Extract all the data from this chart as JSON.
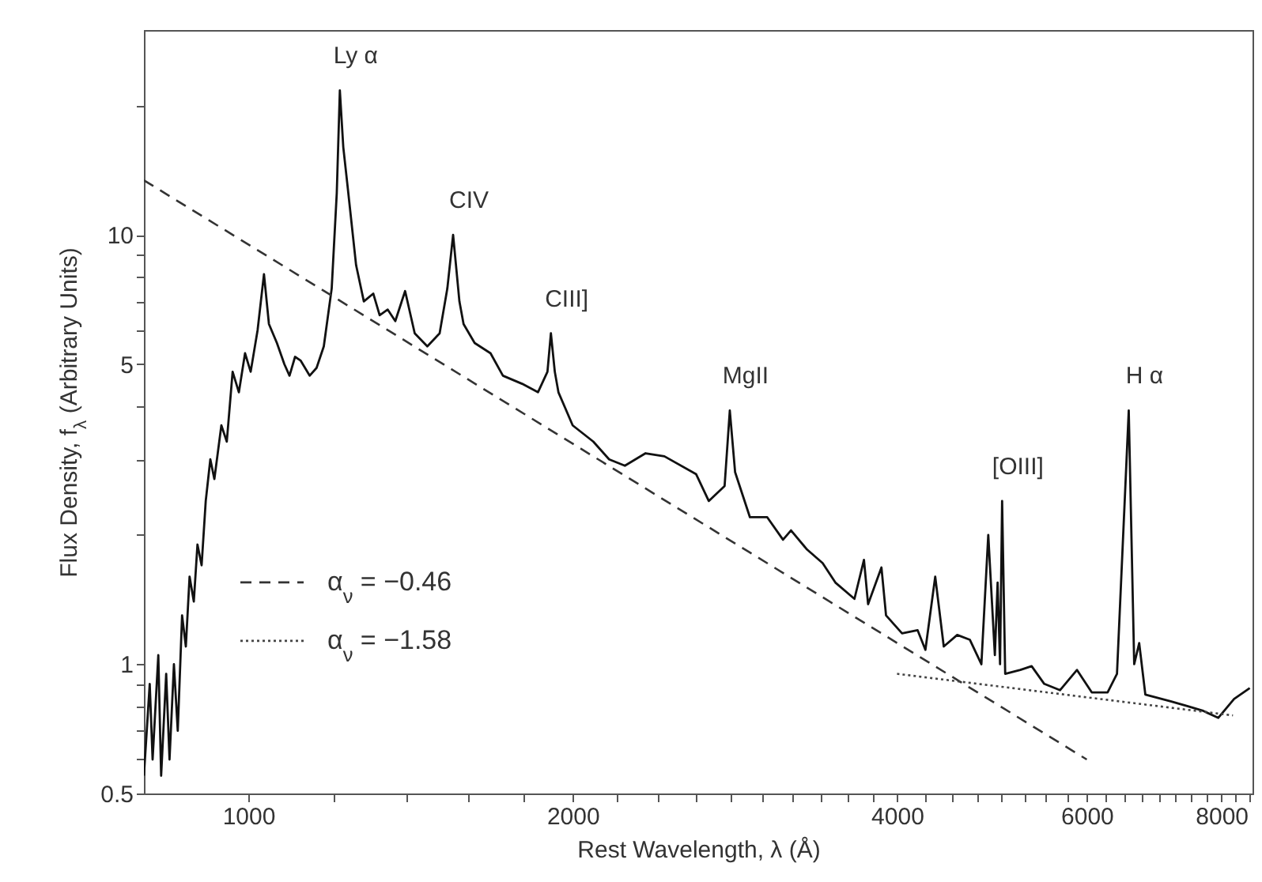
{
  "chart_data": {
    "type": "line",
    "log": "xy",
    "xlabel": "Rest Wavelength, λ (Å)",
    "ylabel": "Flux Density, f$_{λ}$ (Arbitrary Units)",
    "xlim": [
      800,
      8550
    ],
    "ylim": [
      0.5,
      30
    ],
    "xticks": [
      1000,
      {
        "value": 1200,
        "label": null
      },
      {
        "value": 1400,
        "label": null
      },
      {
        "value": 1600,
        "label": null
      },
      {
        "value": 1800,
        "label": null
      },
      2000,
      {
        "value": 2200,
        "label": null
      },
      {
        "value": 2400,
        "label": null
      },
      {
        "value": 2600,
        "label": null
      },
      {
        "value": 2800,
        "label": null
      },
      {
        "value": 3000,
        "label": null
      },
      {
        "value": 3200,
        "label": null
      },
      {
        "value": 3400,
        "label": null
      },
      {
        "value": 3600,
        "label": null
      },
      {
        "value": 3800,
        "label": null
      },
      4000,
      {
        "value": 4250,
        "label": null
      },
      {
        "value": 4500,
        "label": null
      },
      {
        "value": 4750,
        "label": null
      },
      {
        "value": 5000,
        "label": null
      },
      {
        "value": 5250,
        "label": null
      },
      {
        "value": 5500,
        "label": null
      },
      {
        "value": 5750,
        "label": null
      },
      6000,
      {
        "value": 6250,
        "label": null
      },
      {
        "value": 6500,
        "label": null
      },
      {
        "value": 6750,
        "label": null
      },
      {
        "value": 7000,
        "label": null
      },
      {
        "value": 7250,
        "label": null
      },
      {
        "value": 7500,
        "label": null
      },
      {
        "value": 7750,
        "label": null
      },
      8000,
      {
        "value": 8250,
        "label": null
      },
      {
        "value": 8500,
        "label": null
      }
    ],
    "yticks": [
      0.5,
      {
        "value": 0.6,
        "label": null
      },
      {
        "value": 0.7,
        "label": null
      },
      {
        "value": 0.8,
        "label": null
      },
      {
        "value": 0.9,
        "label": null
      },
      1,
      {
        "value": 2,
        "label": null
      },
      {
        "value": 3,
        "label": null
      },
      {
        "value": 4,
        "label": null
      },
      5,
      {
        "value": 6,
        "label": null
      },
      {
        "value": 7,
        "label": null
      },
      {
        "value": 8,
        "label": null
      },
      {
        "value": 9,
        "label": null
      },
      10,
      {
        "value": 20,
        "label": null
      }
    ],
    "legend": "bottom left",
    "series": [
      {
        "color": "#111111",
        "x": [
          800,
          810,
          815,
          825,
          830,
          839,
          845,
          853,
          860,
          868,
          875,
          882,
          890,
          897,
          905,
          913,
          922,
          930,
          944,
          955,
          967,
          980,
          993,
          1005,
          1020,
          1034,
          1045,
          1063,
          1080,
          1092,
          1105,
          1118,
          1140,
          1157,
          1175,
          1195,
          1208,
          1216,
          1225,
          1237,
          1259,
          1280,
          1306,
          1324,
          1347,
          1369,
          1398,
          1427,
          1466,
          1505,
          1530,
          1549,
          1570,
          1584,
          1622,
          1678,
          1723,
          1795,
          1857,
          1895,
          1909,
          1925,
          1940,
          2000,
          2090,
          2162,
          2236,
          2337,
          2433,
          2604,
          2675,
          2767,
          2798,
          2830,
          2921,
          3031,
          3135,
          3189,
          3300,
          3412,
          3506,
          3652,
          3727,
          3760,
          3869,
          3907,
          4043,
          4180,
          4250,
          4340,
          4420,
          4549,
          4674,
          4790,
          4861,
          4930,
          4959,
          4985,
          5007,
          5040,
          5206,
          5333,
          5479,
          5666,
          5876,
          6064,
          6273,
          6400,
          6563,
          6640,
          6711,
          6800,
          7178,
          7426,
          7683,
          7946,
          8220,
          8500
        ],
        "values": [
          0.55,
          0.9,
          0.6,
          1.05,
          0.55,
          0.95,
          0.6,
          1.0,
          0.7,
          1.3,
          1.1,
          1.6,
          1.4,
          1.9,
          1.7,
          2.4,
          3.0,
          2.7,
          3.6,
          3.3,
          4.8,
          4.3,
          5.3,
          4.8,
          6.0,
          8.1,
          6.2,
          5.6,
          5.0,
          4.7,
          5.2,
          5.1,
          4.7,
          4.9,
          5.5,
          7.5,
          12.5,
          21.7,
          16,
          12.8,
          8.5,
          7.0,
          7.3,
          6.5,
          6.7,
          6.3,
          7.4,
          5.9,
          5.5,
          5.9,
          7.5,
          10.0,
          7.0,
          6.2,
          5.6,
          5.3,
          4.7,
          4.5,
          4.3,
          4.8,
          5.9,
          4.8,
          4.3,
          3.6,
          3.3,
          3.0,
          2.9,
          3.1,
          3.05,
          2.77,
          2.4,
          2.6,
          3.9,
          2.8,
          2.2,
          2.2,
          1.95,
          2.05,
          1.85,
          1.72,
          1.55,
          1.42,
          1.75,
          1.38,
          1.68,
          1.3,
          1.18,
          1.2,
          1.08,
          1.6,
          1.1,
          1.17,
          1.14,
          1.0,
          2.0,
          1.05,
          1.55,
          1.0,
          2.4,
          0.95,
          0.97,
          0.99,
          0.9,
          0.87,
          0.97,
          0.86,
          0.86,
          0.95,
          3.9,
          1.0,
          1.12,
          0.85,
          0.82,
          0.8,
          0.78,
          0.75,
          0.83,
          0.88
        ]
      },
      {
        "name": "α$_{ν}$ = −0.46",
        "color": "#333333",
        "line_style": "dashed",
        "x": [
          800,
          6000
        ],
        "values": [
          13.4,
          0.6
        ]
      },
      {
        "name": "α$_{ν}$ = −1.58",
        "color": "#444444",
        "line_style": "dotted",
        "x": [
          4000,
          8200
        ],
        "values": [
          0.95,
          0.76
        ]
      }
    ],
    "annotations": [
      {
        "text": "Ly α",
        "x": 1216,
        "y": 21.7
      },
      {
        "text": "CIV",
        "x": 1549,
        "y": 10.0
      },
      {
        "text": "CIII]",
        "x": 1909,
        "y": 5.9
      },
      {
        "text": "MgII",
        "x": 2798,
        "y": 3.9
      },
      {
        "text": "[OIII]",
        "x": 5007,
        "y": 2.4
      },
      {
        "text": "H α",
        "x": 6563,
        "y": 3.9
      }
    ]
  }
}
